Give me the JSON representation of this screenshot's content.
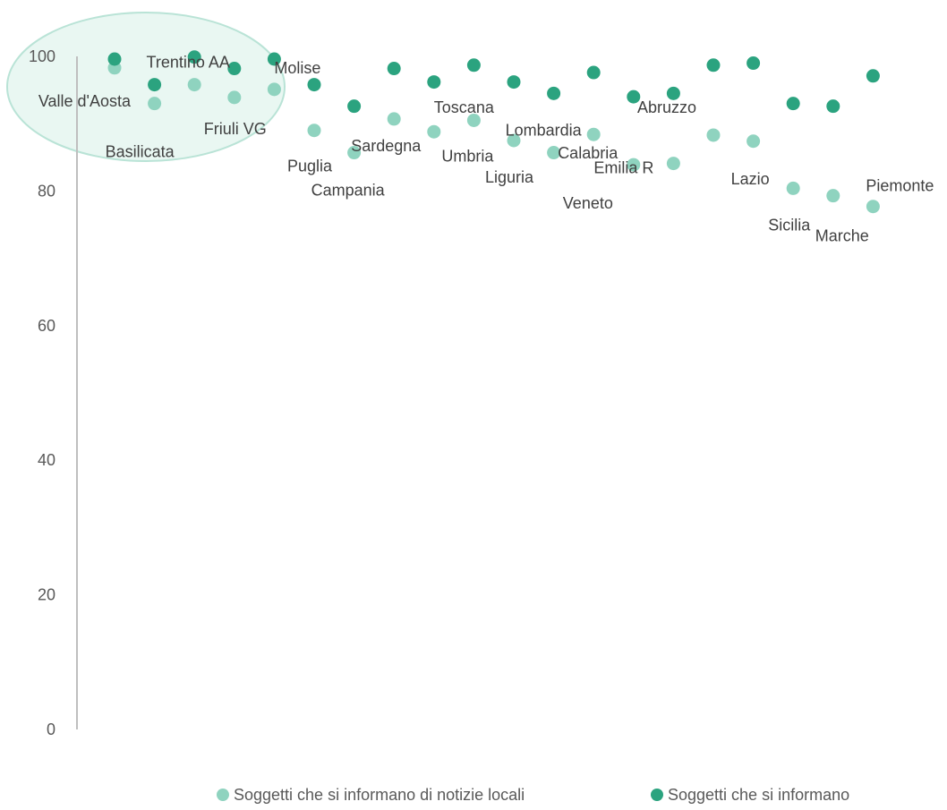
{
  "chart_data": {
    "type": "scatter",
    "title": "",
    "xlabel": "",
    "ylabel": "",
    "ylim": [
      0,
      100
    ],
    "yticks": [
      "0",
      "20",
      "40",
      "60",
      "80",
      "100"
    ],
    "grid": false,
    "legend_position": "bottom",
    "colors": {
      "local": "#8fd3bf",
      "general": "#2ba37f",
      "highlight_fill": "#e9f7f2",
      "highlight_stroke": "#b9e3d6",
      "axis": "#bfbfbf"
    },
    "regions": [
      "Valle d'Aosta",
      "Basilicata",
      "Trentino AA",
      "Friuli VG",
      "Molise",
      "Puglia",
      "Campania",
      "Sardegna",
      "Toscana",
      "Umbria",
      "Liguria",
      "Lombardia",
      "Calabria",
      "Veneto",
      "Emilia R",
      "Abruzzo",
      "Lazio",
      "Sicilia",
      "Marche",
      "Piemonte"
    ],
    "series": [
      {
        "name": "Soggetti che si informano di notizie locali",
        "key": "local",
        "values": [
          98.3,
          93.0,
          95.8,
          93.9,
          95.1,
          89.0,
          85.7,
          90.7,
          88.8,
          90.5,
          87.5,
          85.7,
          88.4,
          83.9,
          84.1,
          88.3,
          87.4,
          80.4,
          79.3,
          77.7
        ]
      },
      {
        "name": "Soggetti che si informano",
        "key": "general",
        "values": [
          99.6,
          95.8,
          99.9,
          98.2,
          99.6,
          95.8,
          92.6,
          98.2,
          96.2,
          98.7,
          96.2,
          94.5,
          97.6,
          94.0,
          94.5,
          98.7,
          99.0,
          93.0,
          92.6,
          97.1
        ]
      }
    ],
    "point_labels": [
      {
        "region": "Valle d'Aosta",
        "text": "Valle d'Aosta",
        "anchor": "end"
      },
      {
        "region": "Basilicata",
        "text": "Basilicata",
        "anchor": "start"
      },
      {
        "region": "Trentino AA",
        "text": "Trentino AA",
        "anchor": "middle"
      },
      {
        "region": "Friuli VG",
        "text": "Friuli VG",
        "anchor": "middle"
      },
      {
        "region": "Molise",
        "text": "Molise",
        "anchor": "start"
      },
      {
        "region": "Puglia",
        "text": "Puglia",
        "anchor": "start"
      },
      {
        "region": "Campania",
        "text": "Campania",
        "anchor": "start"
      },
      {
        "region": "Sardegna",
        "text": "Sardegna",
        "anchor": "start"
      },
      {
        "region": "Toscana",
        "text": "Toscana",
        "anchor": "start"
      },
      {
        "region": "Umbria",
        "text": "Umbria",
        "anchor": "start"
      },
      {
        "region": "Liguria",
        "text": "Liguria",
        "anchor": "start"
      },
      {
        "region": "Lombardia",
        "text": "Lombardia",
        "anchor": "start"
      },
      {
        "region": "Calabria",
        "text": "Calabria",
        "anchor": "start"
      },
      {
        "region": "Veneto",
        "text": "Veneto",
        "anchor": "start"
      },
      {
        "region": "Emilia R",
        "text": "Emilia R",
        "anchor": "start"
      },
      {
        "region": "Abruzzo",
        "text": "Abruzzo",
        "anchor": "start"
      },
      {
        "region": "Lazio",
        "text": "Lazio",
        "anchor": "start"
      },
      {
        "region": "Sicilia",
        "text": "Sicilia",
        "anchor": "start"
      },
      {
        "region": "Marche",
        "text": "Marche",
        "anchor": "start"
      },
      {
        "region": "Piemonte",
        "text": "Piemonte",
        "anchor": "start"
      }
    ],
    "highlight_group": [
      "Valle d'Aosta",
      "Basilicata",
      "Trentino AA",
      "Friuli VG",
      "Molise"
    ]
  }
}
